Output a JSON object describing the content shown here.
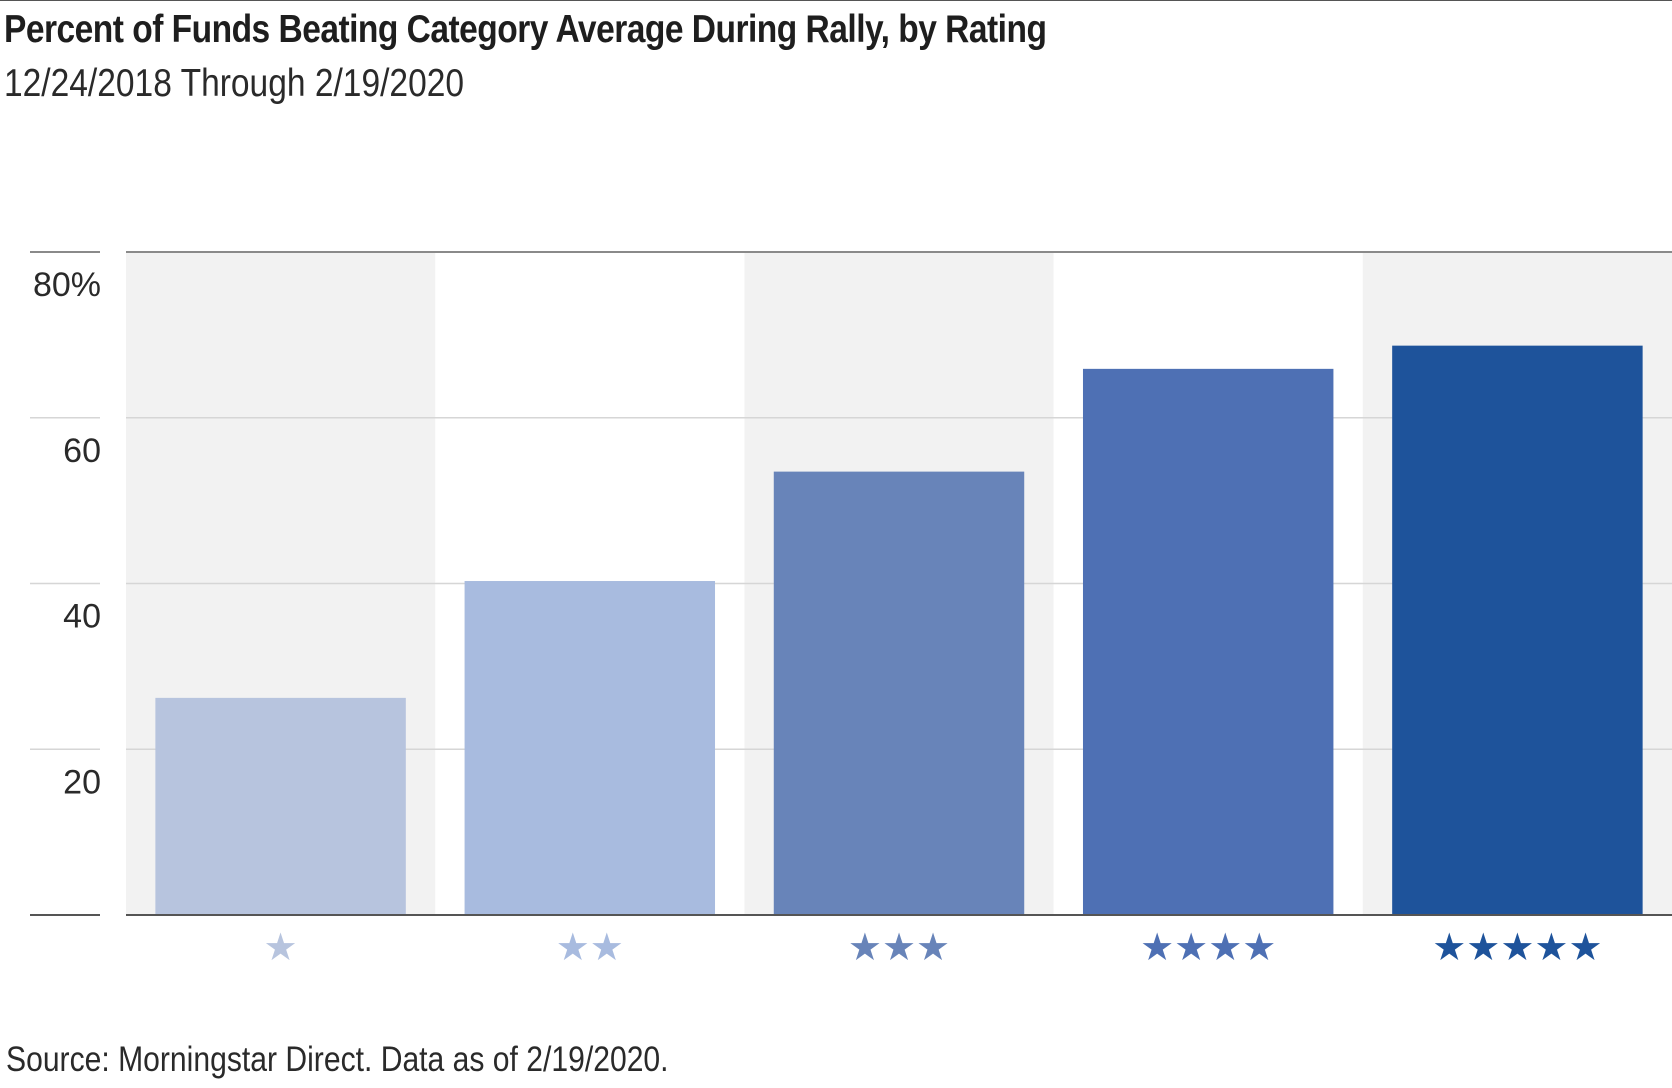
{
  "chart_data": {
    "type": "bar",
    "title": "Percent of Funds Beating Category Average During Rally, by Rating",
    "subtitle": "12/24/2018 Through 2/19/2020",
    "source": "Source: Morningstar Direct. Data as of 2/19/2020.",
    "categories": [
      "★",
      "★★",
      "★★★",
      "★★★★",
      "★★★★★"
    ],
    "values": [
      26.2,
      40.3,
      53.5,
      65.9,
      68.7
    ],
    "ylim": [
      0,
      80
    ],
    "yticks": [
      20,
      40,
      60,
      80
    ],
    "ytick_labels": [
      "20",
      "40",
      "60",
      "80%"
    ],
    "grid": true,
    "colors": [
      "#b7c4de",
      "#a8bbdf",
      "#6884b9",
      "#4e70b4",
      "#1e539b"
    ],
    "band_color": "#f2f2f2",
    "grid_color": "#d6d6d6"
  }
}
